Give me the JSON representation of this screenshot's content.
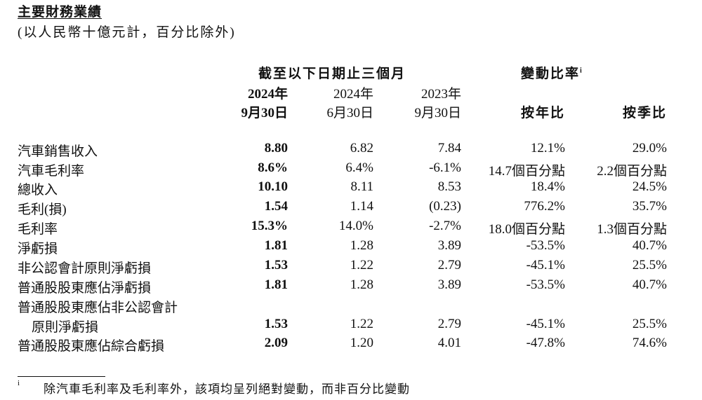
{
  "title": "主要財務業績",
  "subtitle": "(以人民幣十億元計，百分比除外)",
  "header": {
    "period_group": "截至以下日期止三個月",
    "change_group": "變動比率",
    "change_group_note": "i",
    "columns": [
      {
        "year": "2024年",
        "date": "9月30日"
      },
      {
        "year": "2024年",
        "date": "6月30日"
      },
      {
        "year": "2023年",
        "date": "9月30日"
      }
    ],
    "yoy": "按年比",
    "qoq": "按季比"
  },
  "rows": [
    {
      "label": "汽車銷售收入",
      "v": [
        "8.80",
        "6.82",
        "7.84",
        "12.1%",
        "29.0%"
      ]
    },
    {
      "label": "汽車毛利率",
      "v": [
        "8.6%",
        "6.4%",
        "-6.1%",
        "14.7個百分點",
        "2.2個百分點"
      ]
    },
    {
      "label": "總收入",
      "v": [
        "10.10",
        "8.11",
        "8.53",
        "18.4%",
        "24.5%"
      ]
    },
    {
      "label": "毛利(損)",
      "v": [
        "1.54",
        "1.14",
        "(0.23)",
        "776.2%",
        "35.7%"
      ]
    },
    {
      "label": "毛利率",
      "v": [
        "15.3%",
        "14.0%",
        "-2.7%",
        "18.0個百分點",
        "1.3個百分點"
      ]
    },
    {
      "label": "淨虧損",
      "v": [
        "1.81",
        "1.28",
        "3.89",
        "-53.5%",
        "40.7%"
      ]
    },
    {
      "label": "非公認會計原則淨虧損",
      "v": [
        "1.53",
        "1.22",
        "2.79",
        "-45.1%",
        "25.5%"
      ]
    },
    {
      "label": "普通股股東應佔淨虧損",
      "v": [
        "1.81",
        "1.28",
        "3.89",
        "-53.5%",
        "40.7%"
      ]
    },
    {
      "label": "普通股股東應佔非公認會計",
      "v": [
        "",
        "",
        "",
        "",
        ""
      ]
    },
    {
      "label": "原則淨虧損",
      "indent": true,
      "v": [
        "1.53",
        "1.22",
        "2.79",
        "-45.1%",
        "25.5%"
      ]
    },
    {
      "label": "普通股股東應佔綜合虧損",
      "v": [
        "2.09",
        "1.20",
        "4.01",
        "-47.8%",
        "74.6%"
      ]
    }
  ],
  "footnote": {
    "mark": "i",
    "text": "除汽車毛利率及毛利率外，該項均呈列絕對變動，而非百分比變動"
  }
}
